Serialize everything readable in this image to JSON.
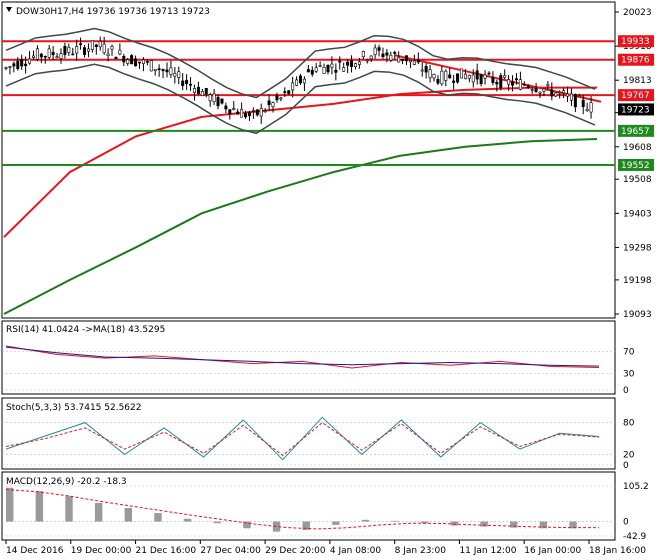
{
  "chart_data": [
    {
      "id": "price",
      "type": "candlestick",
      "title": "DOW30H17,H4  19736 19736 19713 19723",
      "ylim": [
        19093,
        20023
      ],
      "y_ticks": [
        20023,
        19918,
        19813,
        19713,
        19608,
        19508,
        19403,
        19298,
        19198,
        19093
      ],
      "current_price": "19723",
      "x_ticks": [
        "14 Dec 2016",
        "19 Dec 00:00",
        "21 Dec 16:00",
        "27 Dec 04:00",
        "29 Dec 20:00",
        "4 Jan 08:00",
        "8 Jan 23:00",
        "11 Jan 12:00",
        "16 Jan 00:00",
        "18 Jan 16:00"
      ],
      "levels": [
        {
          "value": 19933,
          "label": "19933",
          "color": "#e8141c"
        },
        {
          "value": 19876,
          "label": "19876",
          "color": "#e8141c"
        },
        {
          "value": 19767,
          "label": "19767",
          "color": "#e8141c"
        },
        {
          "value": 19657,
          "label": "19657",
          "color": "#1e8a1e"
        },
        {
          "value": 19552,
          "label": "19552",
          "color": "#1e8a1e"
        }
      ],
      "trendline": {
        "x": [
          "8 Jan 23:00",
          "18 Jan 16:00"
        ],
        "y": [
          19890,
          19765
        ],
        "color": "#e8141c"
      },
      "series": [
        {
          "name": "MA slow",
          "color": "#1a7a1a",
          "values": [
            19093,
            19198,
            19298,
            19403,
            19470,
            19530,
            19580,
            19608,
            19625,
            19632
          ]
        },
        {
          "name": "MA mid",
          "color": "#e8141c",
          "values": [
            19330,
            19530,
            19640,
            19700,
            19720,
            19740,
            19770,
            19783,
            19790,
            19790
          ]
        }
      ]
    },
    {
      "id": "rsi",
      "type": "line",
      "title": "RSI(14) 41.0424  ->MA(18) 43.5295",
      "ylim": [
        0,
        100
      ],
      "y_ticks": [
        70,
        30,
        0
      ],
      "series": [
        {
          "name": "RSI(14)",
          "color": "#e8141c",
          "values": [
            80,
            65,
            58,
            62,
            55,
            48,
            52,
            40,
            50,
            45,
            52,
            43,
            41
          ]
        },
        {
          "name": "MA(18)",
          "color": "#1c1c8c",
          "values": [
            78,
            68,
            60,
            58,
            55,
            52,
            48,
            46,
            48,
            50,
            48,
            45,
            43.5
          ]
        }
      ]
    },
    {
      "id": "stoch",
      "type": "line",
      "title": "Stoch(5,3,3) 53.7415 52.5622",
      "ylim": [
        0,
        100
      ],
      "y_ticks": [
        80,
        20,
        0
      ],
      "series": [
        {
          "name": "%K",
          "color": "#1c90a0",
          "values": [
            30,
            55,
            80,
            20,
            70,
            15,
            85,
            10,
            90,
            20,
            85,
            15,
            80,
            30,
            60,
            53.7
          ]
        },
        {
          "name": "%D",
          "color": "#e8141c",
          "values": [
            35,
            50,
            70,
            30,
            62,
            22,
            75,
            18,
            80,
            28,
            78,
            22,
            72,
            35,
            58,
            52.6
          ]
        }
      ]
    },
    {
      "id": "macd",
      "type": "bar",
      "title": "MACD(12,26,9) -20.2 -18.3",
      "ylim": [
        -42.9,
        105.2
      ],
      "y_ticks": [
        105.2,
        0.0,
        -42.9
      ],
      "series": [
        {
          "name": "MACD",
          "color": "#9a9a9a",
          "values": [
            100,
            90,
            75,
            55,
            40,
            25,
            8,
            -5,
            -20,
            -30,
            -25,
            -10,
            5,
            2,
            -5,
            -12,
            -15,
            -18,
            -20,
            -20.2
          ]
        },
        {
          "name": "Signal",
          "color": "#e8141c",
          "values": [
            95,
            88,
            76,
            60,
            46,
            32,
            18,
            5,
            -8,
            -18,
            -22,
            -18,
            -10,
            -5,
            -6,
            -10,
            -13,
            -16,
            -18,
            -18.3
          ]
        }
      ]
    }
  ]
}
